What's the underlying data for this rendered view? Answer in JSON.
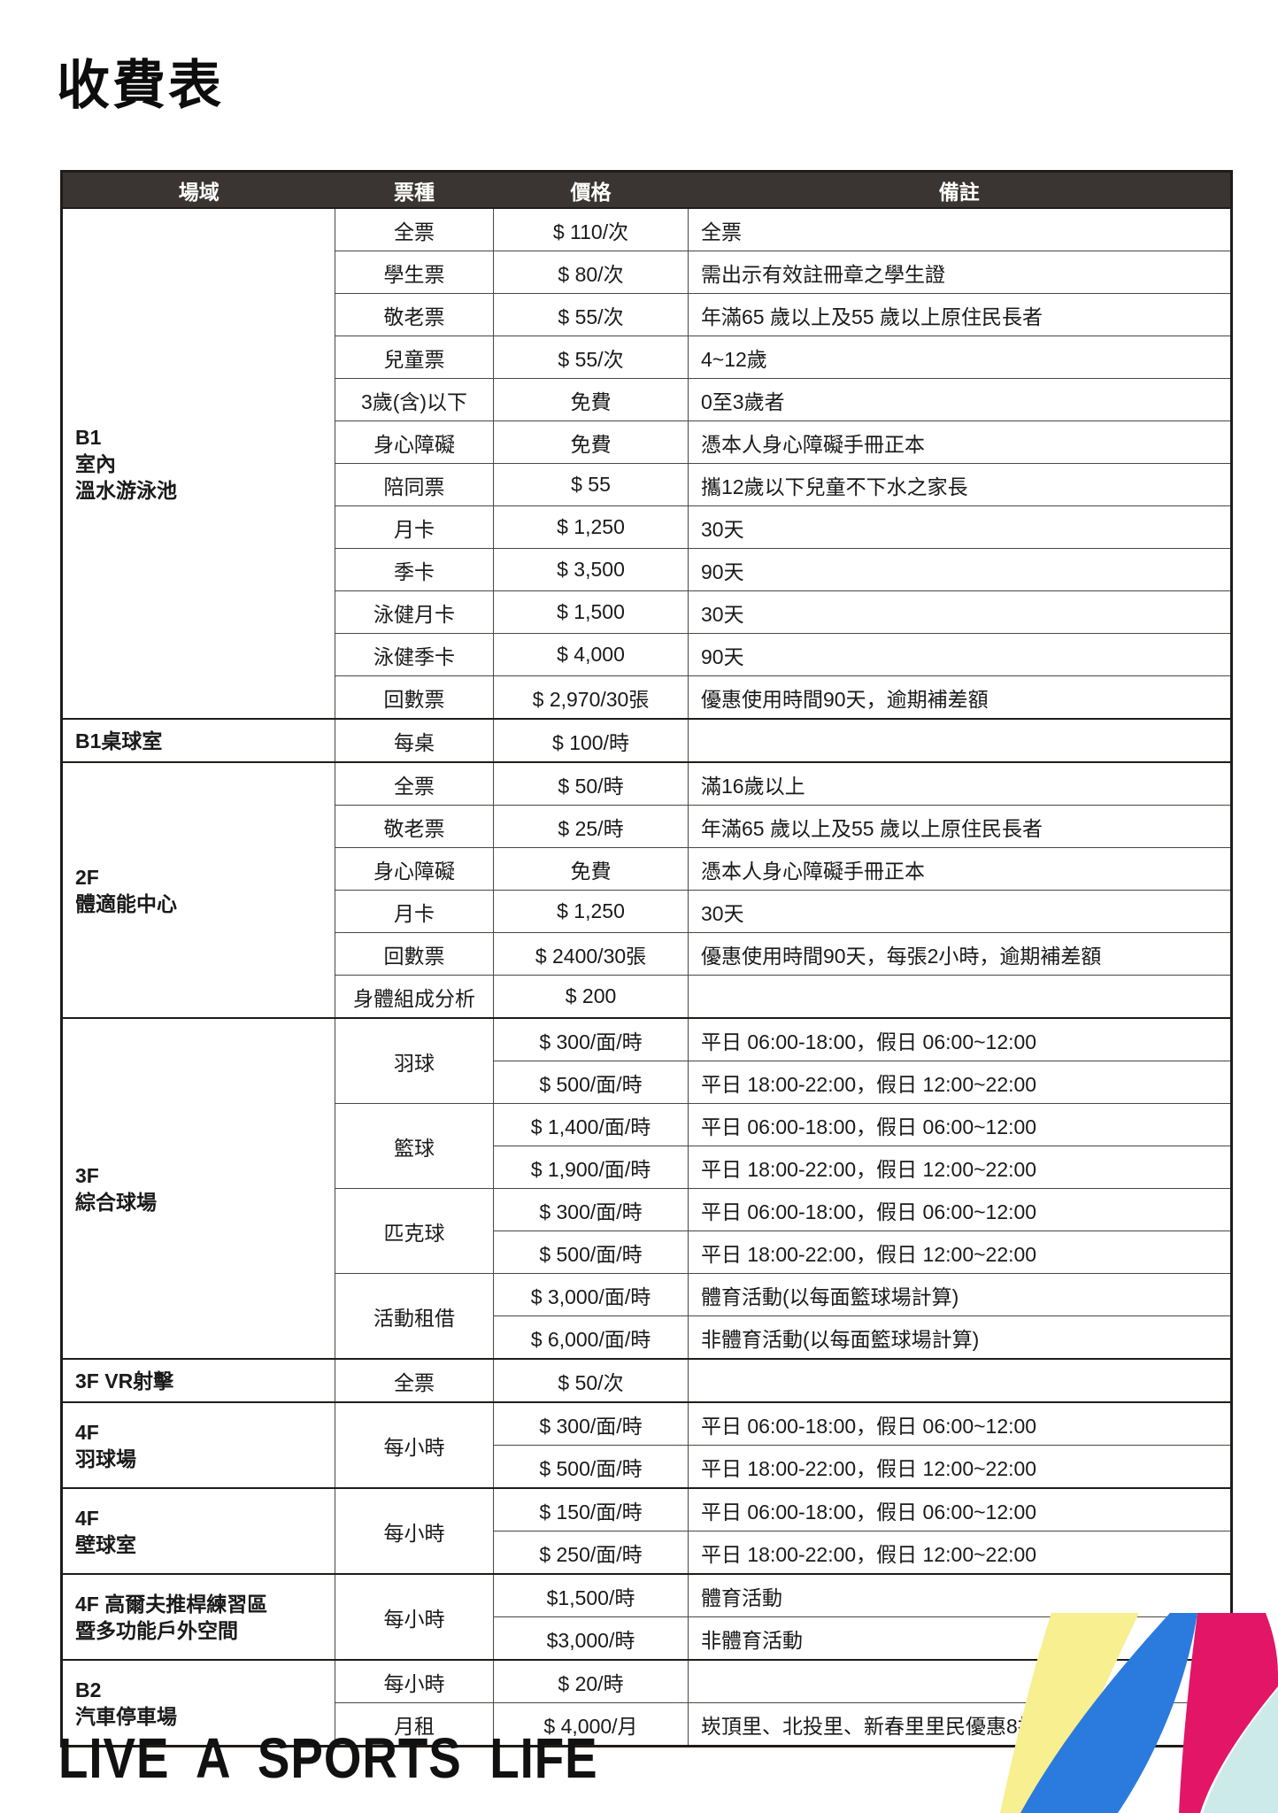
{
  "page": {
    "title": "收費表",
    "footer": "LIVE A SPORTS LIFE"
  },
  "table": {
    "header_bg": "#3a3532",
    "headers": [
      "場域",
      "票種",
      "價格",
      "備註"
    ],
    "sections": [
      {
        "area": [
          "B1",
          "室內",
          "溫水游泳池"
        ],
        "rows": [
          {
            "ticket": "全票",
            "price": "$ 110/次",
            "remark": "全票"
          },
          {
            "ticket": "學生票",
            "price": "$ 80/次",
            "remark": "需出示有效註冊章之學生證"
          },
          {
            "ticket": "敬老票",
            "price": "$ 55/次",
            "remark": "年滿65 歲以上及55 歲以上原住民長者"
          },
          {
            "ticket": "兒童票",
            "price": "$ 55/次",
            "remark": "4~12歲"
          },
          {
            "ticket": "3歲(含)以下",
            "price": "免費",
            "remark": "0至3歲者"
          },
          {
            "ticket": "身心障礙",
            "price": "免費",
            "remark": "憑本人身心障礙手冊正本"
          },
          {
            "ticket": "陪同票",
            "price": "$ 55",
            "remark": "攜12歲以下兒童不下水之家長"
          },
          {
            "ticket": "月卡",
            "price": "$ 1,250",
            "remark": "30天"
          },
          {
            "ticket": "季卡",
            "price": "$ 3,500",
            "remark": "90天"
          },
          {
            "ticket": "泳健月卡",
            "price": "$ 1,500",
            "remark": "30天"
          },
          {
            "ticket": "泳健季卡",
            "price": "$ 4,000",
            "remark": "90天"
          },
          {
            "ticket": "回數票",
            "price": "$ 2,970/30張",
            "remark": "優惠使用時間90天，逾期補差額"
          }
        ]
      },
      {
        "area": [
          "B1桌球室"
        ],
        "rows": [
          {
            "ticket": "每桌",
            "price": "$ 100/時",
            "remark": ""
          }
        ]
      },
      {
        "area": [
          "2F",
          "體適能中心"
        ],
        "rows": [
          {
            "ticket": "全票",
            "price": "$ 50/時",
            "remark": "滿16歲以上"
          },
          {
            "ticket": "敬老票",
            "price": "$ 25/時",
            "remark": "年滿65 歲以上及55 歲以上原住民長者"
          },
          {
            "ticket": "身心障礙",
            "price": "免費",
            "remark": "憑本人身心障礙手冊正本"
          },
          {
            "ticket": "月卡",
            "price": "$ 1,250",
            "remark": "30天"
          },
          {
            "ticket": "回數票",
            "price": "$ 2400/30張",
            "remark": "優惠使用時間90天，每張2小時，逾期補差額"
          },
          {
            "ticket": "身體組成分析",
            "price": "$ 200",
            "remark": ""
          }
        ]
      },
      {
        "area": [
          "3F",
          "綜合球場"
        ],
        "rows": [
          {
            "ticket": "羽球",
            "span": 2,
            "price": "$ 300/面/時",
            "remark": "平日 06:00-18:00，假日 06:00~12:00"
          },
          {
            "price": "$ 500/面/時",
            "remark": "平日 18:00-22:00，假日 12:00~22:00"
          },
          {
            "ticket": "籃球",
            "span": 2,
            "price": "$ 1,400/面/時",
            "remark": "平日 06:00-18:00，假日 06:00~12:00"
          },
          {
            "price": "$ 1,900/面/時",
            "remark": "平日 18:00-22:00，假日 12:00~22:00"
          },
          {
            "ticket": "匹克球",
            "span": 2,
            "price": "$ 300/面/時",
            "remark": "平日 06:00-18:00，假日 06:00~12:00"
          },
          {
            "price": "$ 500/面/時",
            "remark": "平日 18:00-22:00，假日 12:00~22:00"
          },
          {
            "ticket": "活動租借",
            "span": 2,
            "price": "$ 3,000/面/時",
            "remark": "體育活動(以每面籃球場計算)"
          },
          {
            "price": "$ 6,000/面/時",
            "remark": "非體育活動(以每面籃球場計算)"
          }
        ]
      },
      {
        "area": [
          "3F VR射擊"
        ],
        "rows": [
          {
            "ticket": "全票",
            "price": "$ 50/次",
            "remark": ""
          }
        ]
      },
      {
        "area": [
          "4F",
          "羽球場"
        ],
        "rows": [
          {
            "ticket": "每小時",
            "span": 2,
            "price": "$ 300/面/時",
            "remark": "平日 06:00-18:00，假日 06:00~12:00"
          },
          {
            "price": "$ 500/面/時",
            "remark": "平日 18:00-22:00，假日 12:00~22:00"
          }
        ]
      },
      {
        "area": [
          "4F",
          "壁球室"
        ],
        "rows": [
          {
            "ticket": "每小時",
            "span": 2,
            "price": "$ 150/面/時",
            "remark": "平日 06:00-18:00，假日 06:00~12:00"
          },
          {
            "price": "$ 250/面/時",
            "remark": "平日 18:00-22:00，假日 12:00~22:00"
          }
        ]
      },
      {
        "area": [
          "4F 高爾夫推桿練習區",
          "暨多功能戶外空間"
        ],
        "rows": [
          {
            "ticket": "每小時",
            "span": 2,
            "price": "$1,500/時",
            "remark": "體育活動"
          },
          {
            "price": "$3,000/時",
            "remark": "非體育活動"
          }
        ]
      },
      {
        "area": [
          "B2",
          "汽車停車場"
        ],
        "rows": [
          {
            "ticket": "每小時",
            "price": "$ 20/時",
            "remark": ""
          },
          {
            "ticket": "月租",
            "price": "$ 4,000/月",
            "remark": "崁頂里、北投里、新春里里民優惠8折"
          }
        ]
      }
    ]
  },
  "graphic": {
    "colors": {
      "yellow": "#f7ef90",
      "blue": "#2b7ade",
      "magenta": "#e31566",
      "cyan": "#cdeaea"
    }
  }
}
